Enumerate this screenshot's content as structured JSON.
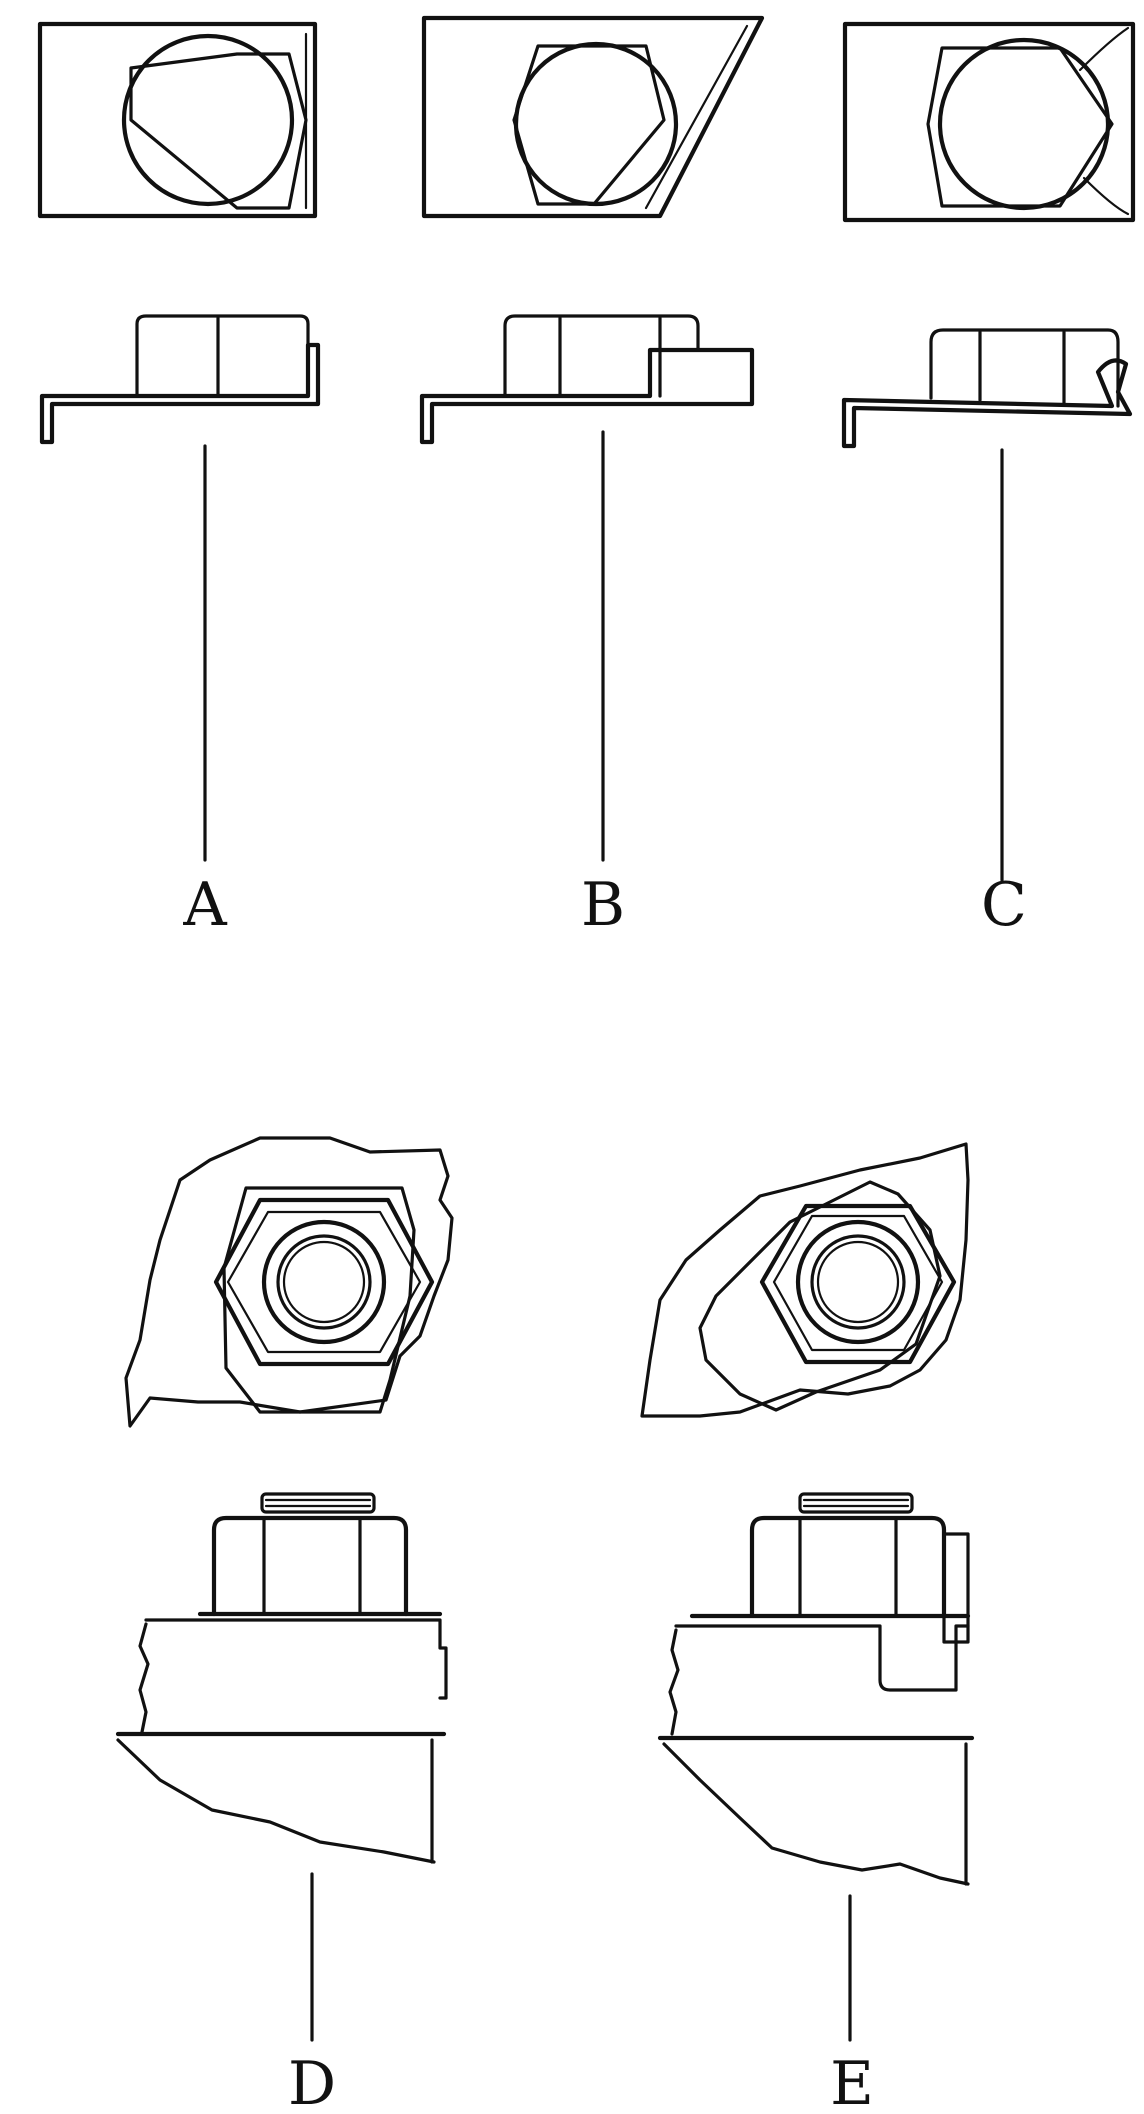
{
  "figure": {
    "labels": {
      "a": "A",
      "b": "B",
      "c": "C",
      "d": "D",
      "e": "E"
    }
  }
}
